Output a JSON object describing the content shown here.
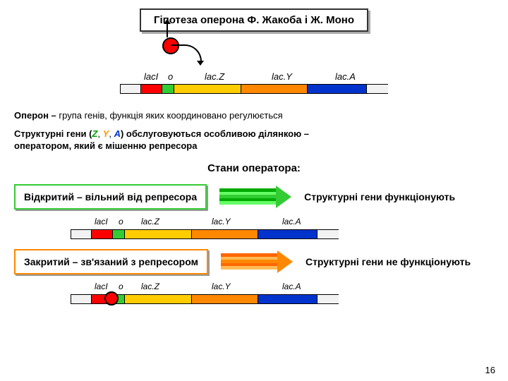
{
  "title": "Гіпотеза оперона Ф. Жакоба і Ж. Моно",
  "genes": {
    "lacI": "lacI",
    "o": "o",
    "lacZ": "lac.Z",
    "lacY": "lac.Y",
    "lacA": "lac.A"
  },
  "colors": {
    "lacI": "#ff0000",
    "operator": "#33cc33",
    "lacZ": "#ffcc00",
    "lacY": "#ff8800",
    "lacA": "#0033cc",
    "flank": "#f2f2f2",
    "repressor": "#ff0000",
    "open_border": "#33cc33",
    "closed_border": "#ff8800"
  },
  "widths": {
    "flank": 30,
    "lacI": 30,
    "operator": 18,
    "lacZ": 95,
    "lacY": 95,
    "lacA": 85
  },
  "text": {
    "definition_lead": "Оперон – ",
    "definition_rest": "група генів, функція яких координовано регулюється",
    "struct_lead": "Структурні гени (",
    "struct_mid": ") обслуговуються особливою ділянкою – ",
    "struct_tail": "оператором, який є мішенню репресора",
    "states_heading": "Стани оператора:",
    "open_box": "Відкритий – вільний від репресора",
    "closed_box": "Закритий – зв'язаний з репресором",
    "open_result": "Структурні гени функціонують",
    "closed_result": "Структурні гени не функціонують"
  },
  "arrows": {
    "open": {
      "stripes": [
        "#00aa00",
        "#66ff66",
        "#33cc33",
        "#00aa00",
        "#66ff66"
      ],
      "head": "#33cc33"
    },
    "closed": {
      "stripes": [
        "#ff6600",
        "#ffbb55",
        "#ff8800",
        "#ff6600",
        "#ffbb55"
      ],
      "head": "#ff8800"
    }
  },
  "page_number": "16"
}
